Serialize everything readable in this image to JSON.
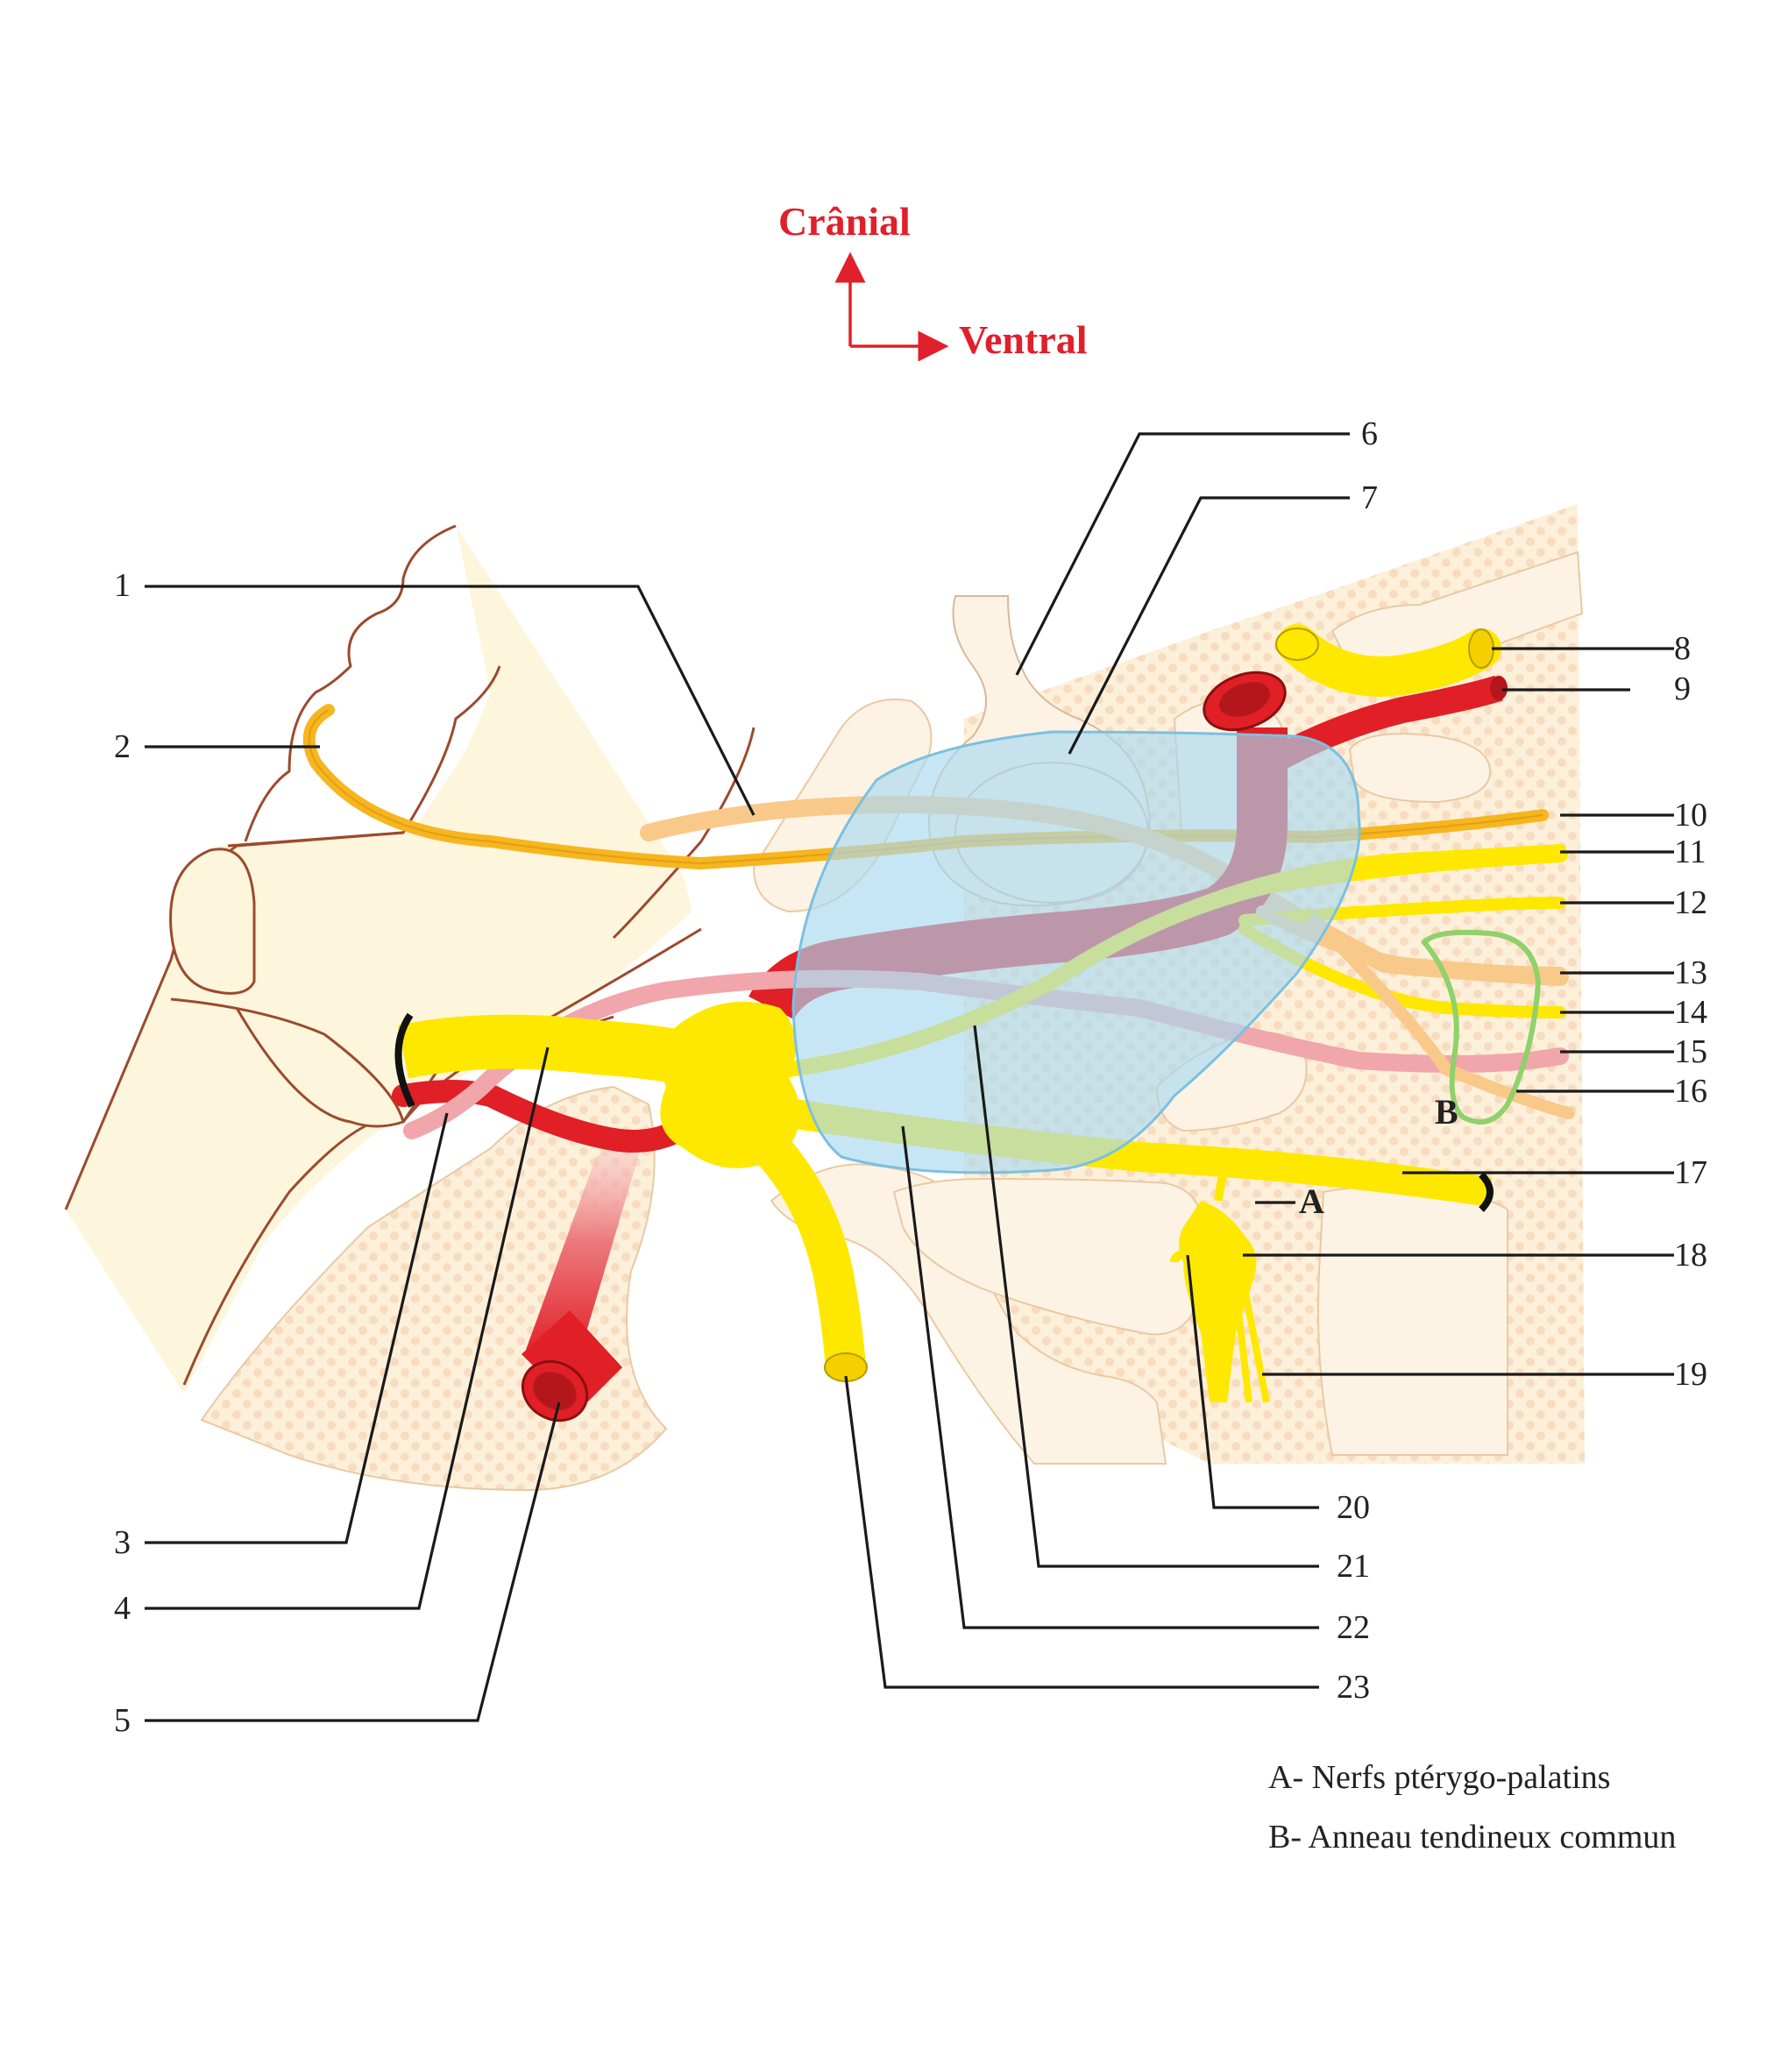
{
  "orientation": {
    "cranial_label": "Crânial",
    "ventral_label": "Ventral",
    "arrow_color": "#e0202a"
  },
  "labels": {
    "n1": "1",
    "n2": "2",
    "n3": "3",
    "n4": "4",
    "n5": "5",
    "n6": "6",
    "n7": "7",
    "n8": "8",
    "n9": "9",
    "n10": "10",
    "n11": "11",
    "n12": "12",
    "n13": "13",
    "n14": "14",
    "n15": "15",
    "n16": "16",
    "n17": "17",
    "n18": "18",
    "n19": "19",
    "n20": "20",
    "n21": "21",
    "n22": "22",
    "n23": "23"
  },
  "structure_letters": {
    "a": "A",
    "b": "B"
  },
  "legend": {
    "a": "A- Nerfs ptérygo-palatins",
    "b": "B- Anneau tendineux commun"
  },
  "colors": {
    "nerve": "#ffe800",
    "nerve_orange": "#f7b51e",
    "nerve_light_orange": "#f9c98a",
    "artery": "#e01f26",
    "pink_nerve": "#f0a6aa",
    "sinus": "#a9d8ef",
    "bone": "#fdf6dc",
    "bone_outline": "#9c4a2e",
    "tendon_ring": "#8fd16a"
  }
}
